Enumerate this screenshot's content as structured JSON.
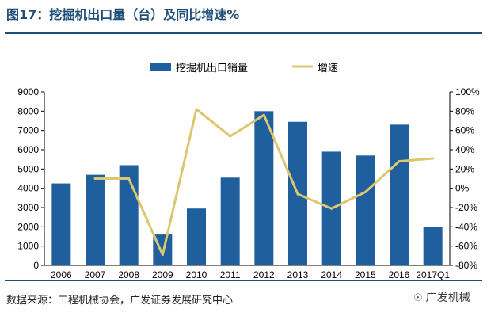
{
  "figure_title": "图17：挖掘机出口量（台）及同比增速%",
  "source_note": "数据来源：工程机械协会，广发证券发展研究中心",
  "watermark": "广发机械",
  "watermark_icon": "wechat-icon",
  "colors": {
    "bar": "#1f5f9e",
    "line": "#ddc670",
    "title": "#1f4e79"
  },
  "chart_data": {
    "type": "bar",
    "categories": [
      "2006",
      "2007",
      "2008",
      "2009",
      "2010",
      "2011",
      "2012",
      "2013",
      "2014",
      "2015",
      "2016",
      "2017Q1"
    ],
    "series": [
      {
        "name": "挖掘机出口销量",
        "type": "bar",
        "axis": "left",
        "values": [
          4250,
          4700,
          5200,
          1600,
          2950,
          4550,
          8000,
          7450,
          5900,
          5700,
          7300,
          2000
        ]
      },
      {
        "name": "增速",
        "type": "line",
        "axis": "right",
        "values": [
          null,
          10,
          10,
          -69,
          82,
          54,
          76,
          -6,
          -21,
          -4,
          28,
          31
        ]
      }
    ],
    "y_left": {
      "lim": [
        0,
        9000
      ],
      "ticks": [
        "0",
        "1000",
        "2000",
        "3000",
        "4000",
        "5000",
        "6000",
        "7000",
        "8000",
        "9000"
      ]
    },
    "y_right": {
      "lim": [
        -80,
        100
      ],
      "ticks": [
        "-80%",
        "-60%",
        "-40%",
        "-20%",
        "0%",
        "20%",
        "40%",
        "60%",
        "80%",
        "100%"
      ]
    },
    "legend": "top-center",
    "grid": false
  }
}
